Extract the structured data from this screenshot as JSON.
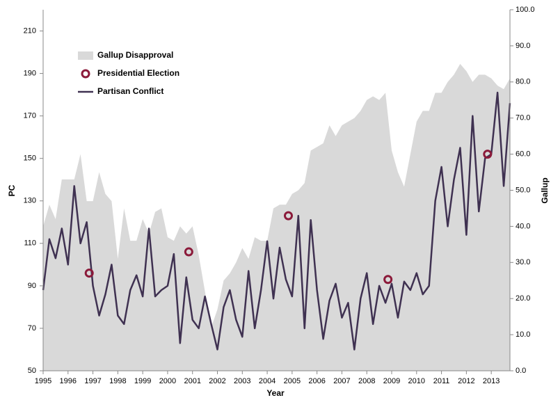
{
  "chart_data": {
    "type": "combo",
    "x_label": "Year",
    "y_label": "PC",
    "y2_label": "Gallup",
    "x": [
      1995,
      1995.25,
      1995.5,
      1995.75,
      1996,
      1996.25,
      1996.5,
      1996.75,
      1997,
      1997.25,
      1997.5,
      1997.75,
      1998,
      1998.25,
      1998.5,
      1998.75,
      1999,
      1999.25,
      1999.5,
      1999.75,
      2000,
      2000.25,
      2000.5,
      2000.75,
      2001,
      2001.25,
      2001.5,
      2001.75,
      2002,
      2002.25,
      2002.5,
      2002.75,
      2003,
      2003.25,
      2003.5,
      2003.75,
      2004,
      2004.25,
      2004.5,
      2004.75,
      2005,
      2005.25,
      2005.5,
      2005.75,
      2006,
      2006.25,
      2006.5,
      2006.75,
      2007,
      2007.25,
      2007.5,
      2007.75,
      2008,
      2008.25,
      2008.5,
      2008.75,
      2009,
      2009.25,
      2009.5,
      2009.75,
      2010,
      2010.25,
      2010.5,
      2010.75,
      2011,
      2011.25,
      2011.5,
      2011.75,
      2012,
      2012.25,
      2012.5,
      2012.75,
      2013,
      2013.25,
      2013.5,
      2013.75
    ],
    "series": [
      {
        "name": "Gallup Disapproval",
        "type": "area",
        "axis": "y2",
        "color": "#d9d9d9",
        "values": [
          40,
          46,
          42,
          53,
          53,
          53,
          60,
          47,
          47,
          55,
          49,
          47,
          31,
          45,
          36,
          36,
          42,
          38,
          44,
          45,
          37,
          36,
          40,
          38,
          40,
          32,
          22,
          12,
          17,
          25,
          27,
          30,
          34,
          31,
          37,
          36,
          36,
          45,
          46,
          46,
          49,
          50,
          52,
          61,
          62,
          63,
          68,
          65,
          68,
          69,
          70,
          72,
          75,
          76,
          75,
          77,
          61,
          55,
          51,
          60,
          69,
          72,
          72,
          77,
          77,
          80,
          82,
          85,
          83,
          80,
          82,
          82,
          81,
          79,
          78,
          81
        ]
      },
      {
        "name": "Presidential  Election",
        "type": "scatter",
        "color": "#8b1a3a",
        "x": [
          1996.85,
          2000.85,
          2004.85,
          2008.85,
          2012.85
        ],
        "values": [
          96,
          106,
          123,
          93,
          152
        ]
      },
      {
        "name": "Partisan Conflict",
        "type": "line",
        "color": "#3f3151",
        "values": [
          88,
          112,
          103,
          117,
          100,
          137,
          110,
          120,
          90,
          76,
          86,
          100,
          76,
          72,
          88,
          95,
          85,
          117,
          85,
          88,
          90,
          105,
          63,
          94,
          74,
          70,
          85,
          72,
          60,
          80,
          88,
          74,
          66,
          97,
          70,
          88,
          111,
          84,
          108,
          93,
          85,
          123,
          70,
          121,
          88,
          65,
          83,
          91,
          75,
          82,
          60,
          84,
          96,
          72,
          90,
          82,
          91,
          75,
          92,
          88,
          96,
          86,
          90,
          130,
          146,
          118,
          140,
          155,
          114,
          170,
          125,
          150,
          152,
          181,
          137,
          176
        ]
      }
    ],
    "xlim": [
      1995,
      2013.75
    ],
    "xticks": [
      1995,
      1996,
      1997,
      1998,
      1999,
      2000,
      2001,
      2002,
      2003,
      2004,
      2005,
      2006,
      2007,
      2008,
      2009,
      2010,
      2011,
      2012,
      2013
    ],
    "ylim": [
      50,
      220
    ],
    "yticks": [
      50,
      70,
      90,
      110,
      130,
      150,
      170,
      190,
      210
    ],
    "y2lim": [
      0,
      100
    ],
    "y2ticks": [
      {
        "value": 0,
        "label": "0.0"
      },
      {
        "value": 10,
        "label": "10.0"
      },
      {
        "value": 20,
        "label": "20.0"
      },
      {
        "value": 30,
        "label": "30.0"
      },
      {
        "value": 40,
        "label": "40.0"
      },
      {
        "value": 50,
        "label": "50.0"
      },
      {
        "value": 60,
        "label": "60.0"
      },
      {
        "value": 70,
        "label": "70.0"
      },
      {
        "value": 80,
        "label": "80.0"
      },
      {
        "value": 90,
        "label": "90.0"
      },
      {
        "value": 100,
        "label": "100.0"
      }
    ]
  }
}
